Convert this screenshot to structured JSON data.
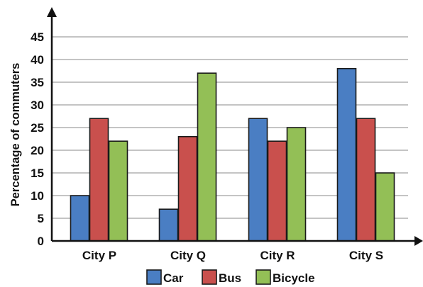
{
  "chart_data": {
    "type": "bar",
    "title": "",
    "xlabel": "",
    "ylabel": "Percentage of commuters",
    "ylim": [
      0,
      45
    ],
    "yticks": [
      0,
      5,
      10,
      15,
      20,
      25,
      30,
      35,
      40,
      45
    ],
    "grid": true,
    "legend_position": "bottom",
    "categories": [
      "City P",
      "City Q",
      "City R",
      "City S"
    ],
    "series": [
      {
        "name": "Car",
        "color": "#4a7ec3",
        "values": [
          10,
          7,
          27,
          38
        ]
      },
      {
        "name": "Bus",
        "color": "#c9504d",
        "values": [
          27,
          23,
          22,
          27
        ]
      },
      {
        "name": "Bicycle",
        "color": "#93bf56",
        "values": [
          22,
          37,
          25,
          15
        ]
      }
    ]
  }
}
